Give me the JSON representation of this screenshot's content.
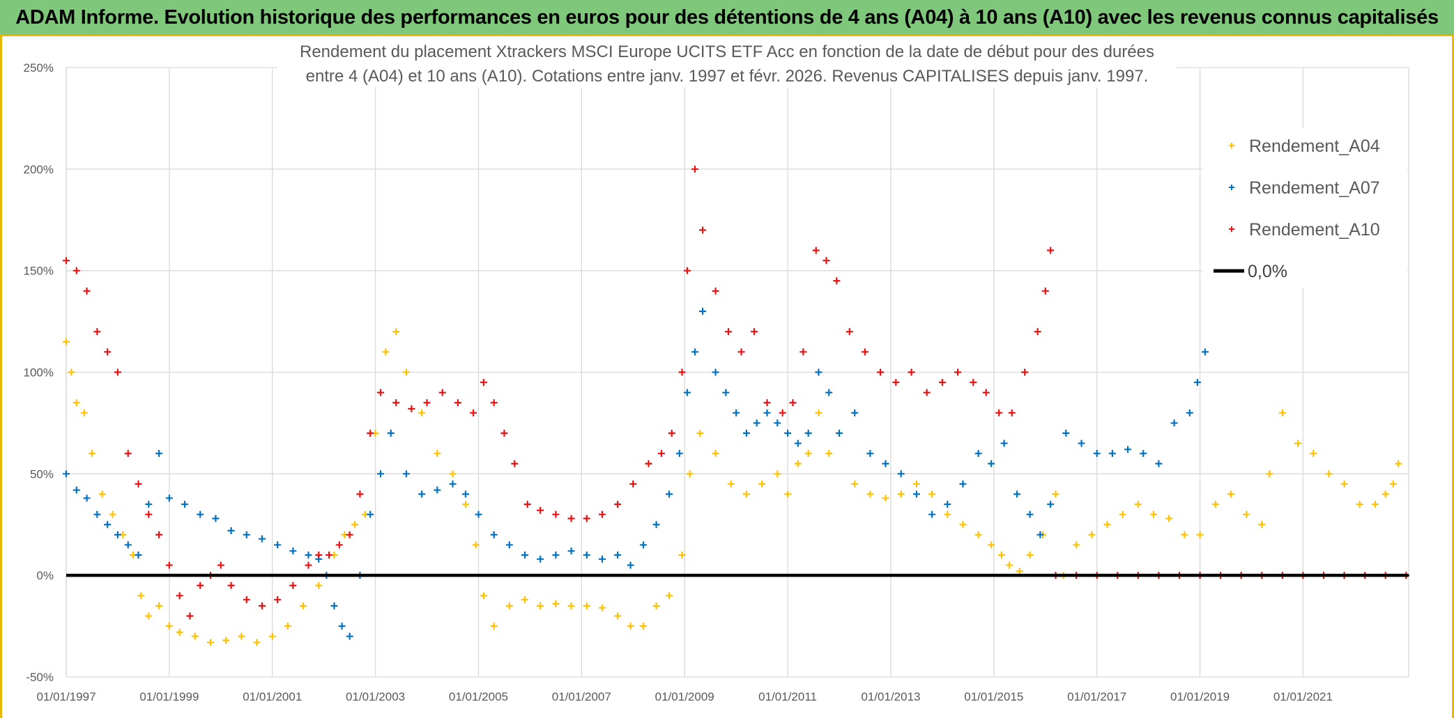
{
  "banner": {
    "text": "ADAM Informe. Evolution historique des performances en euros pour des détentions de 4 ans (A04) à 10 ans (A10) avec les revenus connus capitalisés"
  },
  "chart_data": {
    "type": "scatter",
    "title": [
      "Rendement du placement Xtrackers MSCI Europe UCITS ETF Acc en fonction de la date de début pour des durées",
      "entre 4 (A04) et 10 ans (A10). Cotations entre janv. 1997 et févr. 2026. Revenus CAPITALISES depuis janv. 1997."
    ],
    "xlabel": "",
    "ylabel": "",
    "xlim": [
      1997.0,
      2023.05
    ],
    "ylim": [
      -50,
      250
    ],
    "y_ticks": [
      -50,
      0,
      50,
      100,
      150,
      200,
      250
    ],
    "y_tick_labels": [
      "-50%",
      "0%",
      "50%",
      "100%",
      "150%",
      "200%",
      "250%"
    ],
    "x_ticks": [
      1997,
      1999,
      2001,
      2003,
      2005,
      2007,
      2009,
      2011,
      2013,
      2015,
      2017,
      2019,
      2021
    ],
    "x_tick_labels": [
      "01/01/1997",
      "01/01/1999",
      "01/01/2001",
      "01/01/2003",
      "01/01/2005",
      "01/01/2007",
      "01/01/2009",
      "01/01/2011",
      "01/01/2013",
      "01/01/2015",
      "01/01/2017",
      "01/01/2019",
      "01/01/2021"
    ],
    "grid": true,
    "legend_position": "right",
    "series": [
      {
        "name": "Rendement_A04",
        "color": "#ffc000",
        "marker": "plus",
        "x": [
          1997.0,
          1997.1,
          1997.2,
          1997.35,
          1997.5,
          1997.7,
          1997.9,
          1998.1,
          1998.3,
          1998.45,
          1998.6,
          1998.8,
          1999.0,
          1999.2,
          1999.5,
          1999.8,
          2000.1,
          2000.4,
          2000.7,
          2001.0,
          2001.3,
          2001.6,
          2001.9,
          2002.2,
          2002.4,
          2002.6,
          2002.8,
          2003.0,
          2003.2,
          2003.4,
          2003.6,
          2003.9,
          2004.2,
          2004.5,
          2004.75,
          2004.95,
          2005.1,
          2005.3,
          2005.6,
          2005.9,
          2006.2,
          2006.5,
          2006.8,
          2007.1,
          2007.4,
          2007.7,
          2007.95,
          2008.2,
          2008.45,
          2008.7,
          2008.95,
          2009.1,
          2009.3,
          2009.6,
          2009.9,
          2010.2,
          2010.5,
          2010.8,
          2011.0,
          2011.2,
          2011.4,
          2011.6,
          2011.8,
          2012.0,
          2012.3,
          2012.6,
          2012.9,
          2013.2,
          2013.5,
          2013.8,
          2014.1,
          2014.4,
          2014.7,
          2014.95,
          2015.15,
          2015.3,
          2015.5,
          2015.7,
          2015.95,
          2016.2,
          2016.35,
          2016.6,
          2016.9,
          2017.2,
          2017.5,
          2017.8,
          2018.1,
          2018.4,
          2018.7,
          2019.0,
          2019.3,
          2019.6,
          2019.9,
          2020.2,
          2020.35,
          2020.6,
          2020.9,
          2021.2,
          2021.5,
          2021.8,
          2022.1,
          2022.4,
          2022.6,
          2022.75,
          2022.85
        ],
        "y": [
          115,
          100,
          85,
          80,
          60,
          40,
          30,
          20,
          10,
          -10,
          -20,
          -15,
          -25,
          -28,
          -30,
          -33,
          -32,
          -30,
          -33,
          -30,
          -25,
          -15,
          -5,
          10,
          20,
          25,
          30,
          70,
          110,
          120,
          100,
          80,
          60,
          50,
          35,
          15,
          -10,
          -25,
          -15,
          -12,
          -15,
          -14,
          -15,
          -15,
          -16,
          -20,
          -25,
          -25,
          -15,
          -10,
          10,
          50,
          70,
          60,
          45,
          40,
          45,
          50,
          40,
          55,
          60,
          80,
          60,
          70,
          45,
          40,
          38,
          40,
          45,
          40,
          30,
          25,
          20,
          15,
          10,
          5,
          2,
          10,
          20,
          40,
          0,
          15,
          20,
          25,
          30,
          35,
          30,
          28,
          20,
          20,
          35,
          40,
          30,
          25,
          50,
          80,
          65,
          60,
          50,
          45,
          35,
          35,
          40,
          45,
          55
        ]
      },
      {
        "name": "Rendement_A07",
        "color": "#0070c0",
        "marker": "plus",
        "x": [
          1997.0,
          1997.2,
          1997.4,
          1997.6,
          1997.8,
          1998.0,
          1998.2,
          1998.4,
          1998.6,
          1998.8,
          1999.0,
          1999.3,
          1999.6,
          1999.9,
          2000.2,
          2000.5,
          2000.8,
          2001.1,
          2001.4,
          2001.7,
          2001.9,
          2002.05,
          2002.2,
          2002.35,
          2002.5,
          2002.7,
          2002.9,
          2003.1,
          2003.3,
          2003.6,
          2003.9,
          2004.2,
          2004.5,
          2004.75,
          2005.0,
          2005.3,
          2005.6,
          2005.9,
          2006.2,
          2006.5,
          2006.8,
          2007.1,
          2007.4,
          2007.7,
          2007.95,
          2008.2,
          2008.45,
          2008.7,
          2008.9,
          2009.05,
          2009.2,
          2009.35,
          2009.6,
          2009.8,
          2010.0,
          2010.2,
          2010.4,
          2010.6,
          2010.8,
          2011.0,
          2011.2,
          2011.4,
          2011.6,
          2011.8,
          2012.0,
          2012.3,
          2012.6,
          2012.9,
          2013.2,
          2013.5,
          2013.8,
          2014.1,
          2014.4,
          2014.7,
          2014.95,
          2015.2,
          2015.45,
          2015.7,
          2015.9,
          2016.1,
          2016.4,
          2016.7,
          2017.0,
          2017.3,
          2017.6,
          2017.9,
          2018.2,
          2018.5,
          2018.8,
          2018.95,
          2019.1
        ],
        "y": [
          50,
          42,
          38,
          30,
          25,
          20,
          15,
          10,
          35,
          60,
          38,
          35,
          30,
          28,
          22,
          20,
          18,
          15,
          12,
          10,
          8,
          0,
          -15,
          -25,
          -30,
          0,
          30,
          50,
          70,
          50,
          40,
          42,
          45,
          40,
          30,
          20,
          15,
          10,
          8,
          10,
          12,
          10,
          8,
          10,
          5,
          15,
          25,
          40,
          60,
          90,
          110,
          130,
          100,
          90,
          80,
          70,
          75,
          80,
          75,
          70,
          65,
          70,
          100,
          90,
          70,
          80,
          60,
          55,
          50,
          40,
          30,
          35,
          45,
          60,
          55,
          65,
          40,
          30,
          20,
          35,
          70,
          65,
          60,
          60,
          62,
          60,
          55,
          75,
          80,
          95,
          110
        ]
      },
      {
        "name": "Rendement_A10",
        "color": "#e81010",
        "marker": "plus",
        "x": [
          1997.0,
          1997.2,
          1997.4,
          1997.6,
          1997.8,
          1998.0,
          1998.2,
          1998.4,
          1998.6,
          1998.8,
          1999.0,
          1999.2,
          1999.4,
          1999.6,
          1999.8,
          2000.0,
          2000.2,
          2000.5,
          2000.8,
          2001.1,
          2001.4,
          2001.7,
          2001.9,
          2002.1,
          2002.3,
          2002.5,
          2002.7,
          2002.9,
          2003.1,
          2003.4,
          2003.7,
          2004.0,
          2004.3,
          2004.6,
          2004.9,
          2005.1,
          2005.3,
          2005.5,
          2005.7,
          2005.95,
          2006.2,
          2006.5,
          2006.8,
          2007.1,
          2007.4,
          2007.7,
          2008.0,
          2008.3,
          2008.55,
          2008.75,
          2008.95,
          2009.05,
          2009.2,
          2009.35,
          2009.6,
          2009.85,
          2010.1,
          2010.35,
          2010.6,
          2010.9,
          2011.1,
          2011.3,
          2011.55,
          2011.75,
          2011.95,
          2012.2,
          2012.5,
          2012.8,
          2013.1,
          2013.4,
          2013.7,
          2014.0,
          2014.3,
          2014.6,
          2014.85,
          2015.1,
          2015.35,
          2015.6,
          2015.85,
          2016.0,
          2016.1
        ],
        "y": [
          155,
          150,
          140,
          120,
          110,
          100,
          60,
          45,
          30,
          20,
          5,
          -10,
          -20,
          -5,
          0,
          5,
          -5,
          -12,
          -15,
          -12,
          -5,
          5,
          10,
          10,
          15,
          20,
          40,
          70,
          90,
          85,
          82,
          85,
          90,
          85,
          80,
          95,
          85,
          70,
          55,
          35,
          32,
          30,
          28,
          28,
          30,
          35,
          45,
          55,
          60,
          70,
          100,
          150,
          200,
          170,
          140,
          120,
          110,
          120,
          85,
          80,
          85,
          110,
          160,
          155,
          145,
          120,
          110,
          100,
          95,
          100,
          90,
          95,
          100,
          95,
          90,
          80,
          80,
          100,
          120,
          140,
          160
        ]
      },
      {
        "name": "Rendement_A10",
        "legend": false,
        "color": "#e81010",
        "marker": "plus",
        "x": [
          2016.2,
          2016.6,
          2017.0,
          2017.4,
          2017.8,
          2018.2,
          2018.6,
          2019.0,
          2019.4,
          2019.8,
          2020.2,
          2020.6,
          2021.0,
          2021.4,
          2021.8,
          2022.2,
          2022.6,
          2023.0
        ],
        "y": [
          0,
          0,
          0,
          0,
          0,
          0,
          0,
          0,
          0,
          0,
          0,
          0,
          0,
          0,
          0,
          0,
          0,
          0
        ]
      },
      {
        "name": "0,0%",
        "color": "#000000",
        "marker": "line",
        "x": [
          1997.0,
          2023.05
        ],
        "y": [
          0,
          0
        ]
      }
    ],
    "legend": [
      "Rendement_A04",
      "Rendement_A07",
      "Rendement_A10",
      "0,0%"
    ]
  }
}
